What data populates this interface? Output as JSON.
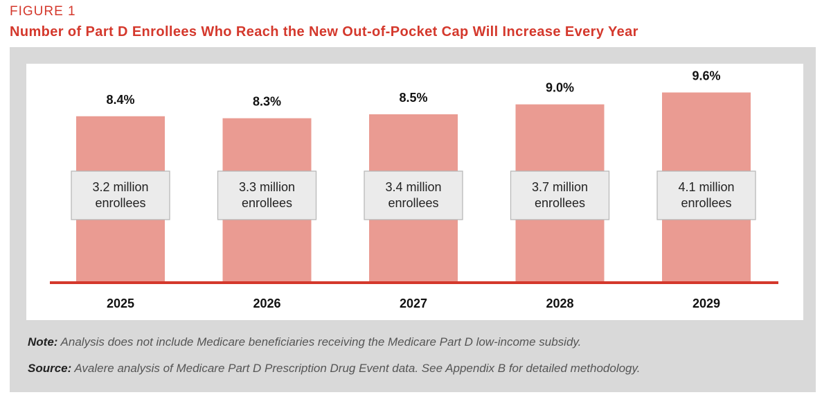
{
  "header": {
    "figure_label": "FIGURE 1",
    "title": "Number of Part D Enrollees Who Reach the New Out-of-Pocket Cap Will Increase Every Year"
  },
  "footer": {
    "note_label": "Note:",
    "note_text": " Analysis does not include Medicare beneficiaries receiving the Medicare Part D low-income subsidy.",
    "source_label": "Source:",
    "source_text": " Avalere analysis of Medicare Part D Prescription Drug Event data. See Appendix B for detailed methodology."
  },
  "colors": {
    "accent": "#d4382c",
    "bar": "#ea9b92",
    "axis": "#d4382c",
    "box_fill": "#ebebeb",
    "box_border": "#b5b5b5",
    "frame": "#d9d9d9"
  },
  "chart_data": {
    "type": "bar",
    "categories": [
      "2025",
      "2026",
      "2027",
      "2028",
      "2029"
    ],
    "values": [
      8.4,
      8.3,
      8.5,
      9.0,
      9.6
    ],
    "value_labels": [
      "8.4%",
      "8.3%",
      "8.5%",
      "9.0%",
      "9.6%"
    ],
    "enrollee_labels": [
      [
        "3.2 million",
        "enrollees"
      ],
      [
        "3.3 million",
        "enrollees"
      ],
      [
        "3.4 million",
        "enrollees"
      ],
      [
        "3.7 million",
        "enrollees"
      ],
      [
        "4.1 million",
        "enrollees"
      ]
    ],
    "title": "Number of Part D Enrollees Who Reach the New Out-of-Pocket Cap Will Increase Every Year",
    "xlabel": "",
    "ylabel": "",
    "ylim": [
      0,
      11.05
    ],
    "grid": false,
    "legend": "none"
  }
}
